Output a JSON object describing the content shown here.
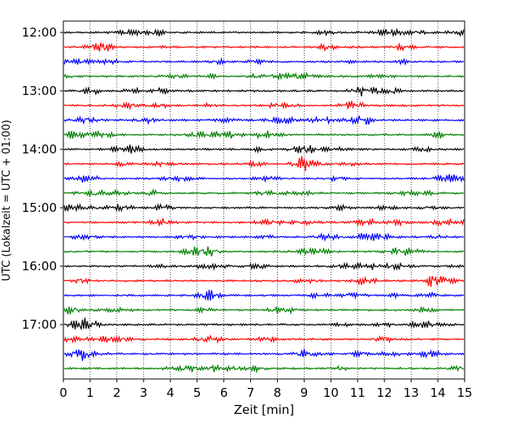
{
  "chart_data": {
    "type": "line",
    "title": "",
    "xlabel": "Zeit  [min]",
    "ylabel": "UTC (Lokalzeit = UTC + 01:00)",
    "xlim": [
      0,
      15
    ],
    "x_ticks": [
      "0",
      "1",
      "2",
      "3",
      "4",
      "5",
      "6",
      "7",
      "8",
      "9",
      "10",
      "11",
      "12",
      "13",
      "14",
      "15"
    ],
    "y_ticks": [
      "12:00",
      "13:00",
      "14:00",
      "15:00",
      "16:00",
      "17:00"
    ],
    "grid": {
      "x": true,
      "y": false,
      "style": "dotted"
    },
    "trace_interval_minutes": 15,
    "trace_colors": [
      "#000000",
      "#ff0000",
      "#0000ff",
      "#008000"
    ],
    "series": [
      {
        "start": "12:00",
        "color": "#000000"
      },
      {
        "start": "12:15",
        "color": "#ff0000"
      },
      {
        "start": "12:30",
        "color": "#0000ff"
      },
      {
        "start": "12:45",
        "color": "#008000"
      },
      {
        "start": "13:00",
        "color": "#000000"
      },
      {
        "start": "13:15",
        "color": "#ff0000"
      },
      {
        "start": "13:30",
        "color": "#0000ff"
      },
      {
        "start": "13:45",
        "color": "#008000"
      },
      {
        "start": "14:00",
        "color": "#000000"
      },
      {
        "start": "14:15",
        "color": "#ff0000"
      },
      {
        "start": "14:30",
        "color": "#0000ff"
      },
      {
        "start": "14:45",
        "color": "#008000"
      },
      {
        "start": "15:00",
        "color": "#000000"
      },
      {
        "start": "15:15",
        "color": "#ff0000"
      },
      {
        "start": "15:30",
        "color": "#0000ff"
      },
      {
        "start": "15:45",
        "color": "#008000"
      },
      {
        "start": "16:00",
        "color": "#000000"
      },
      {
        "start": "16:15",
        "color": "#ff0000"
      },
      {
        "start": "16:30",
        "color": "#0000ff"
      },
      {
        "start": "16:45",
        "color": "#008000"
      },
      {
        "start": "17:00",
        "color": "#000000"
      },
      {
        "start": "17:15",
        "color": "#ff0000"
      },
      {
        "start": "17:30",
        "color": "#0000ff"
      },
      {
        "start": "17:45",
        "color": "#008000"
      }
    ]
  }
}
